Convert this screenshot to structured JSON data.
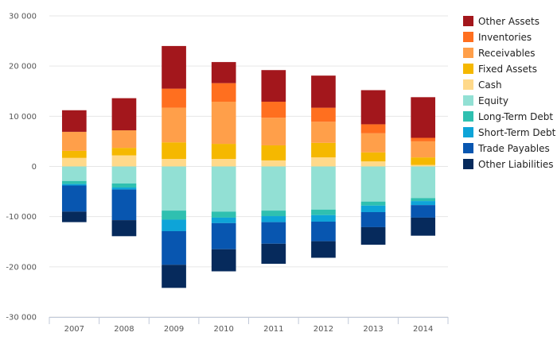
{
  "chart_data": {
    "type": "bar",
    "stacked": true,
    "categories": [
      "2007",
      "2008",
      "2009",
      "2010",
      "2011",
      "2012",
      "2013",
      "2014"
    ],
    "ylim": [
      -30000,
      30000
    ],
    "yticks": [
      30000,
      20000,
      10000,
      0,
      -10000,
      -20000,
      -30000
    ],
    "ytick_labels": [
      "30 000",
      "20 000",
      "10 000",
      "0",
      "-10 000",
      "-20 000",
      "-30 000"
    ],
    "grid": true,
    "legend_position": "right",
    "series": [
      {
        "name": "Cash",
        "color": "#ffd98a",
        "values": [
          1700,
          2200,
          1500,
          1500,
          1200,
          1800,
          1000,
          300
        ]
      },
      {
        "name": "Fixed Assets",
        "color": "#f5b800",
        "values": [
          1400,
          1500,
          3300,
          3000,
          3000,
          2900,
          1800,
          1500
        ]
      },
      {
        "name": "Receivables",
        "color": "#ff9f4a",
        "values": [
          3800,
          3500,
          6900,
          8400,
          5500,
          4200,
          3800,
          3200
        ]
      },
      {
        "name": "Inventories",
        "color": "#ff6f1f",
        "values": [
          0,
          0,
          3800,
          3700,
          3200,
          2800,
          1800,
          700
        ]
      },
      {
        "name": "Other Assets",
        "color": "#a3171c",
        "values": [
          4300,
          6400,
          8500,
          4200,
          6300,
          6400,
          6800,
          8100
        ]
      },
      {
        "name": "Equity",
        "color": "#92e0d4",
        "values": [
          -2900,
          -3400,
          -8800,
          -9000,
          -8800,
          -8600,
          -7000,
          -6300
        ]
      },
      {
        "name": "Long-Term Debt",
        "color": "#2fc0b0",
        "values": [
          -600,
          -800,
          -1800,
          -1200,
          -1100,
          -1100,
          -800,
          -600
        ]
      },
      {
        "name": "Short-Term Debt",
        "color": "#0ea4d8",
        "values": [
          -300,
          -400,
          -2300,
          -1100,
          -1200,
          -1300,
          -1300,
          -800
        ]
      },
      {
        "name": "Trade Payables",
        "color": "#0856b0",
        "values": [
          -5200,
          -6100,
          -6700,
          -5200,
          -4300,
          -3900,
          -3000,
          -2500
        ]
      },
      {
        "name": "Other Liabilities",
        "color": "#062a5c",
        "values": [
          -2100,
          -3200,
          -4600,
          -4400,
          -4000,
          -3300,
          -3500,
          -3600
        ]
      }
    ],
    "legend_order": [
      "Other Assets",
      "Inventories",
      "Receivables",
      "Fixed Assets",
      "Cash",
      "Equity",
      "Long-Term Debt",
      "Short-Term Debt",
      "Trade Payables",
      "Other Liabilities"
    ]
  }
}
